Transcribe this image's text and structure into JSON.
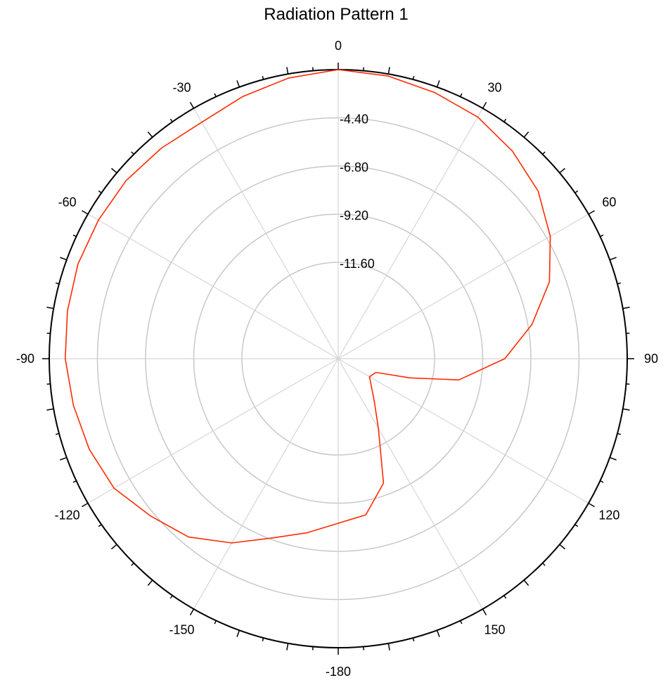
{
  "chart_data": {
    "type": "line",
    "subtype": "polar",
    "title": "Radiation Pattern 1",
    "angle_direction": "clockwise",
    "zero_angle_position": "top",
    "angle_tick_labels": [
      "0",
      "30",
      "60",
      "90",
      "120",
      "150",
      "-180",
      "-150",
      "-120",
      "-90",
      "-60",
      "-30"
    ],
    "radial_tick_labels": [
      "-4.40",
      "-6.80",
      "-9.20",
      "-11.60"
    ],
    "radial_range": [
      -16.4,
      -2.0
    ],
    "grid": true,
    "series": [
      {
        "color": "#ff2a00",
        "points": [
          {
            "theta": 0,
            "r": -2.0
          },
          {
            "theta": 10,
            "r": -2.1
          },
          {
            "theta": 20,
            "r": -2.3
          },
          {
            "theta": 30,
            "r": -2.5
          },
          {
            "theta": 40,
            "r": -2.9
          },
          {
            "theta": 50,
            "r": -3.4
          },
          {
            "theta": 60,
            "r": -4.2
          },
          {
            "theta": 70,
            "r": -5.2
          },
          {
            "theta": 80,
            "r": -6.6
          },
          {
            "theta": 90,
            "r": -8.1
          },
          {
            "theta": 100,
            "r": -10.3
          },
          {
            "theta": 105,
            "r": -12.7
          },
          {
            "theta": 110,
            "r": -14.4
          },
          {
            "theta": 120,
            "r": -14.6
          },
          {
            "theta": 140,
            "r": -13.6
          },
          {
            "theta": 150,
            "r": -12.4
          },
          {
            "theta": 160,
            "r": -9.8
          },
          {
            "theta": 170,
            "r": -8.5
          },
          {
            "theta": 180,
            "r": -8.2
          },
          {
            "theta": -170,
            "r": -7.6
          },
          {
            "theta": -160,
            "r": -6.9
          },
          {
            "theta": -150,
            "r": -5.8
          },
          {
            "theta": -140,
            "r": -4.8
          },
          {
            "theta": -130,
            "r": -4.2
          },
          {
            "theta": -120,
            "r": -3.5
          },
          {
            "theta": -110,
            "r": -3.2
          },
          {
            "theta": -100,
            "r": -3.0
          },
          {
            "theta": -90,
            "r": -2.8
          },
          {
            "theta": -80,
            "r": -2.7
          },
          {
            "theta": -70,
            "r": -2.6
          },
          {
            "theta": -60,
            "r": -2.6
          },
          {
            "theta": -50,
            "r": -2.6
          },
          {
            "theta": -40,
            "r": -2.7
          },
          {
            "theta": -30,
            "r": -2.8
          },
          {
            "theta": -20,
            "r": -2.5
          },
          {
            "theta": -10,
            "r": -2.2
          },
          {
            "theta": 0,
            "r": -2.0
          }
        ]
      }
    ]
  }
}
